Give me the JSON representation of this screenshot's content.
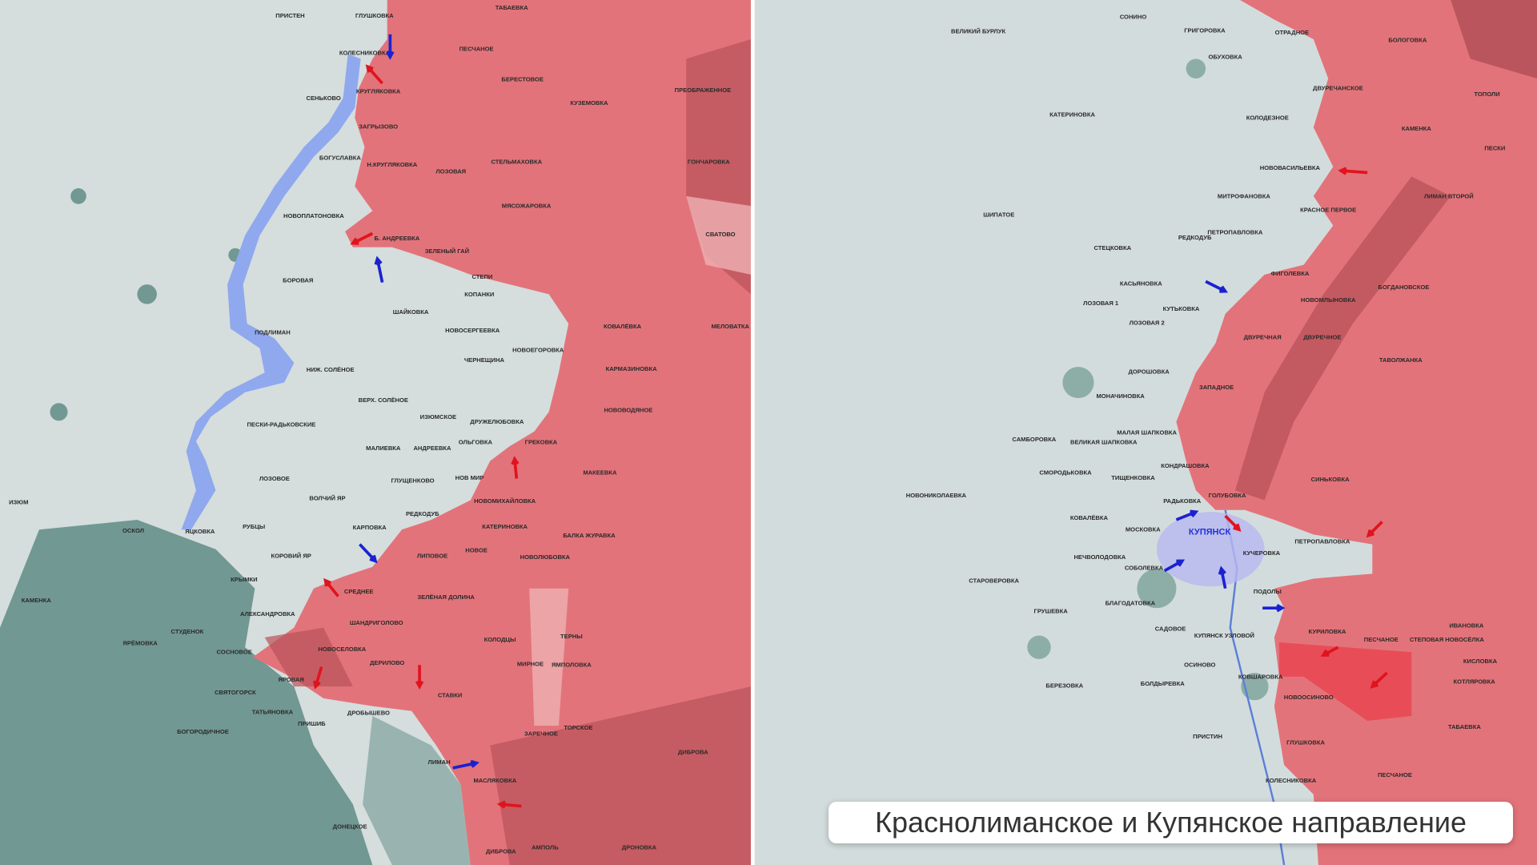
{
  "caption": "Краснолиманское и Купянское направление",
  "colors": {
    "occupied": "#e3737a",
    "occupied_dark": "#b9525a",
    "contested": "#eeb0b2",
    "background": "#d4dcdc",
    "forest": "#5f8c86",
    "water": "#8fa8ee",
    "arrow_red": "#e0141e",
    "arrow_blue": "#1a22d0"
  },
  "panels": {
    "left": {
      "labels": [
        "ПРИСТЕН",
        "ГЛУШКОВКА",
        "ТАБАЕВКА",
        "КОЛЕСНИКОВКА",
        "ПЕСЧАНОЕ",
        "БЕРЕСТОВОЕ",
        "ПРЕОБРАЖЕННОЕ",
        "КРУГЛЯКОВКА",
        "СЕНЬКОВО",
        "КУЗЕМОВКА",
        "ЗАГРЫЗОВО",
        "БОГУСЛАВКА",
        "Н.КРУГЛЯКОВКА",
        "СТЕЛЬМАХОВКА",
        "ГОНЧАРОВКА",
        "ЛОЗОВАЯ",
        "МЯСОЖАРОВКА",
        "НОВОПЛАТОНОВКА",
        "Б. АНДРЕЕВКА",
        "СВАТОВО",
        "ЗЕЛЕНЫЙ ГАЙ",
        "СТЕПИ",
        "БОРОВАЯ",
        "КОПАНКИ",
        "ШАЙКОВКА",
        "КОВАЛЁВКА",
        "МЕЛОВАТКА",
        "НОВОСЕРГЕЕВКА",
        "ПОДЛИМАН",
        "НОВОЕГОРОВКА",
        "ЧЕРНЕЩИНА",
        "НИЖ. СОЛЁНОЕ",
        "КАРМАЗИНОВКА",
        "ВЕРХ. СОЛЁНОЕ",
        "НОВОВОДЯНОЕ",
        "ИЗЮМСКОЕ",
        "ДРУЖЕЛЮБОВКА",
        "ПЕСКИ-РАДЬКОВСКИЕ",
        "ОЛЬГОВКА",
        "ГРЕКОВКА",
        "МАЛИЕВКА",
        "АНДРЕЕВКА",
        "МАКЕЕВКА",
        "НОВ МИР",
        "ЛОЗОВОЕ",
        "ГЛУЩЕНКОВО",
        "ВОЛЧИЙ ЯР",
        "НОВОМИХАЙЛОВКА",
        "ИЗЮМ",
        "РЕДКОДУБ",
        "ОСКОЛ",
        "ЯЦКОВКА",
        "РУБЦЫ",
        "КАРПОВКА",
        "КАТЕРИНОВКА",
        "БАЛКА ЖУРАВКА",
        "КОРОВИЙ ЯР",
        "ЛИПОВОЕ",
        "НОВОЕ",
        "НОВОЛЮБОВКА",
        "КРЫМКИ",
        "СРЕДНЕЕ",
        "КАМЕНКА",
        "ЗЕЛЁНАЯ ДОЛИНА",
        "АЛЕКСАНДРОВКА",
        "ШАНДРИГОЛОВО",
        "СТУДЕНОК",
        "ТЕРНЫ",
        "КОЛОДЦЫ",
        "ЯРЁМОВКА",
        "СОСНОВОЕ",
        "НОВОСЕЛОВКА",
        "ДЕРИЛОВО",
        "МИРНОЕ",
        "ЯМПОЛОВКА",
        "ЯРОВАЯ",
        "СВЯТОГОРСК",
        "СТАВКИ",
        "ТАТЬЯНОВКА",
        "ДРОБЫШЕВО",
        "ПРИШИБ",
        "ТОРСКОЕ",
        "БОГОРОДИЧНОЕ",
        "ЗАРЕЧНОЕ",
        "ДИБРОВА",
        "ЛИМАН",
        "МАСЛЯКОВКА",
        "ДОНЕЦКОЕ",
        "АМПОЛЬ",
        "ДРОНОВКА",
        "ДИБРОВА"
      ]
    },
    "right": {
      "city": "КУПЯНСК",
      "labels": [
        "ВЕЛИКИЙ БУРЛУК",
        "СОНИНО",
        "ГРИГОРОВКА",
        "ОБУХОВКА",
        "ОТРАДНОЕ",
        "БОЛОГОВКА",
        "ДВУРЕЧАНСКОЕ",
        "ТОПОЛИ",
        "КАТЕРИНОВКА",
        "КОЛОДЕЗНОЕ",
        "КАМЕНКА",
        "ПЕСКИ",
        "НОВОВАСИЛЬЕВКА",
        "МИТРОФАНОВКА",
        "ЛИМАН ВТОРОЙ",
        "КРАСНОЕ ПЕРВОЕ",
        "ШИПАТОЕ",
        "ПЕТРОПАВЛОВКА",
        "РЕДКОДУБ",
        "СТЕЦКОВКА",
        "ФИГОЛЕВКА",
        "КАСЬЯНОВКА",
        "БОГДАНОВСКОЕ",
        "КУТЬКОВКА",
        "ЛОЗОВАЯ 1",
        "НОВОМЛЫНОВКА",
        "ЛОЗОВАЯ 2",
        "ДВУРЕЧНАЯ",
        "ДВУРЕЧНОЕ",
        "ТАВОЛЖАНКА",
        "ДОРОШОВКА",
        "ЗАПАДНОЕ",
        "МОНАЧИНОВКА",
        "САМБОРОВКА",
        "ВЕЛИКАЯ ШАПКОВКА",
        "МАЛАЯ ШАПКОВКА",
        "КОНДРАШОВКА",
        "ТИЩЕНКОВКА",
        "СМОРОДЬКОВКА",
        "СИНЬКОВКА",
        "ГОЛУБОВКА",
        "НОВОНИКОЛАЕВКА",
        "РАДЬКОВКА",
        "КОВАЛЁВКА",
        "МОСКОВКА",
        "ПЕТРОПАВЛОВКА",
        "НЕЧВОЛОДОВКА",
        "КУЧЕРОВКА",
        "СОБОЛЕВКА",
        "СТАРОВЕРОВКА",
        "ПОДОЛЫ",
        "БЛАГОДАТОВКА",
        "ГРУШЕВКА",
        "КУРИЛОВКА",
        "ИВАНОВКА",
        "САДОВОЕ",
        "КУПЯНСК УЗЛОВОЙ",
        "ПЕСЧАНОЕ",
        "СТЕПОВАЯ НОВОСЁЛКА",
        "КИСЛОВКА",
        "ОСИНОВО",
        "КОВШАРОВКА",
        "КОТЛЯРОВКА",
        "БЕРЕЗОВКА",
        "БОЛДЫРЕВКА",
        "НОВООСИНОВО",
        "ТАБАЕВКА",
        "ПРИСТИН",
        "ГЛУШКОВКА",
        "ПЕСЧАНОЕ",
        "КОЛЕСНИКОВКА"
      ]
    }
  }
}
